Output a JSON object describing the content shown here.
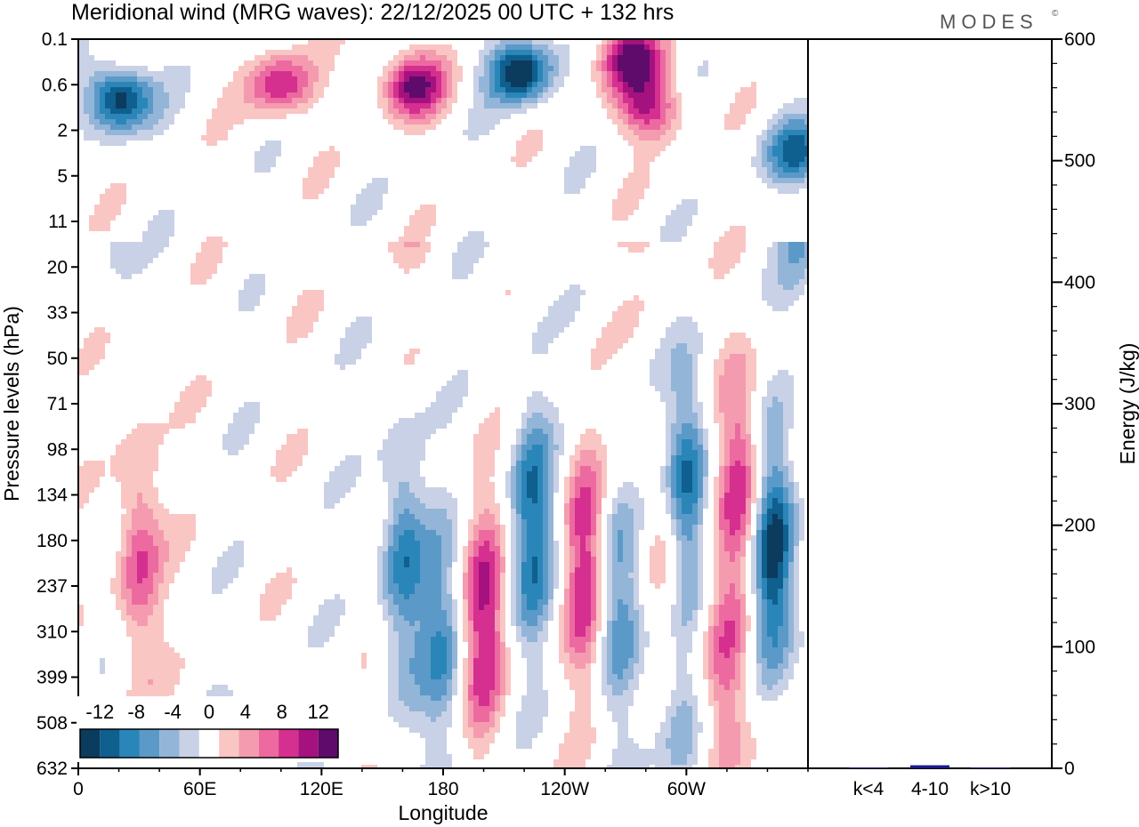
{
  "title": "Meridional wind (MRG waves):  22/12/2025  00 UTC  + 132 hrs",
  "brand": "MODES",
  "brand_mark": "©",
  "chart_data": [
    {
      "type": "heatmap",
      "title": "Meridional wind (MRG waves):  22/12/2025  00 UTC  + 132 hrs",
      "xlabel": "Longitude",
      "ylabel": "Pressure levels (hPa)",
      "x_ticks": [
        "0",
        "60E",
        "120E",
        "180",
        "120W",
        "60W"
      ],
      "x_range_deg": [
        0,
        360
      ],
      "y_ticks": [
        "0.1",
        "0.6",
        "2",
        "5",
        "11",
        "20",
        "33",
        "50",
        "71",
        "98",
        "134",
        "180",
        "237",
        "310",
        "399",
        "508",
        "632"
      ],
      "colorbar": {
        "tick_labels": [
          "-12",
          "-8",
          "-4",
          "0",
          "4",
          "8",
          "12"
        ],
        "levels": [
          -14,
          -12,
          -10,
          -8,
          -6,
          -4,
          -2,
          2,
          4,
          6,
          8,
          10,
          12,
          14
        ],
        "colors": [
          "#0b3c5d",
          "#0f5f8f",
          "#2a86b8",
          "#5b9ac8",
          "#93b5d8",
          "#c9d1e6",
          "#ffffff",
          "#f9c6c4",
          "#f59bb0",
          "#ec6aa0",
          "#d52f8f",
          "#a5127f",
          "#5e0b6c"
        ]
      },
      "features": [
        {
          "lon": 20,
          "level_index": 1.3,
          "value": -14
        },
        {
          "lon": 100,
          "level_index": 1.0,
          "value": 10
        },
        {
          "lon": 165,
          "level_index": 1.0,
          "value": 12
        },
        {
          "lon": 218,
          "level_index": 0.7,
          "value": -14
        },
        {
          "lon": 272,
          "level_index": 0.4,
          "value": 12
        },
        {
          "lon": 282,
          "level_index": 1.5,
          "value": 10
        },
        {
          "lon": 355,
          "level_index": 2.5,
          "value": -10
        },
        {
          "lon": 30,
          "level_index": 11.3,
          "value": 8
        },
        {
          "lon": 160,
          "level_index": 11.4,
          "value": -9
        },
        {
          "lon": 180,
          "level_index": 13.3,
          "value": -7
        },
        {
          "lon": 200,
          "level_index": 12.8,
          "value": 10
        },
        {
          "lon": 224,
          "level_index": 10.6,
          "value": -10
        },
        {
          "lon": 250,
          "level_index": 11.5,
          "value": 10
        },
        {
          "lon": 265,
          "level_index": 12.2,
          "value": -8
        },
        {
          "lon": 290,
          "level_index": 11.3,
          "value": 6
        },
        {
          "lon": 300,
          "level_index": 10.0,
          "value": -12
        },
        {
          "lon": 327,
          "level_index": 9.8,
          "value": 10
        },
        {
          "lon": 343,
          "level_index": 11.4,
          "value": -14
        },
        {
          "lon": 320,
          "level_index": 14.0,
          "value": 8
        },
        {
          "lon": 297,
          "level_index": 14.9,
          "value": -6
        }
      ]
    },
    {
      "type": "bar",
      "ylabel": "Energy (J/kg)",
      "ylim": [
        0,
        600
      ],
      "y_ticks": [
        "0",
        "100",
        "200",
        "300",
        "400",
        "500",
        "600"
      ],
      "categories": [
        "k<4",
        "4-10",
        "k>10"
      ],
      "values": [
        0.5,
        2.5,
        0.3
      ],
      "bar_color": "#1a1a8c"
    }
  ]
}
